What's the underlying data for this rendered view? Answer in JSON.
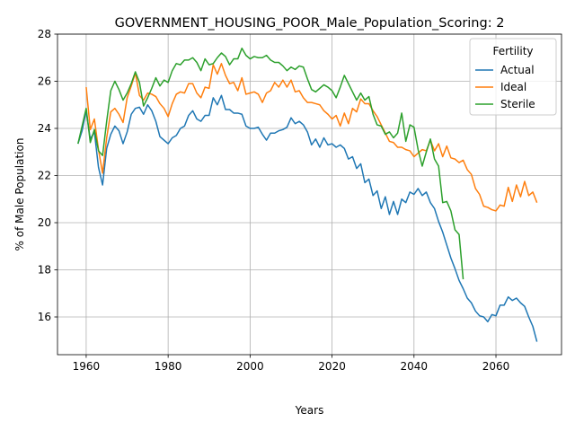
{
  "chart_data": {
    "type": "line",
    "title": "GOVERNMENT_HOUSING_POOR_Male_Population_Scoring: 2",
    "xlabel": "Years",
    "ylabel": "% of Male Population",
    "xlim": [
      1953,
      2076
    ],
    "ylim": [
      14.4,
      28.0
    ],
    "xticks": [
      1960,
      1980,
      2000,
      2020,
      2040,
      2060
    ],
    "yticks": [
      16,
      18,
      20,
      22,
      24,
      26,
      28
    ],
    "grid": true,
    "legend": {
      "title": "Fertility",
      "placement": "upper right"
    },
    "series": [
      {
        "name": "Actual",
        "color": "#1f77b4",
        "x": [
          1958,
          1959,
          1960,
          1961,
          1962,
          1963,
          1964,
          1965,
          1966,
          1967,
          1968,
          1969,
          1970,
          1971,
          1972,
          1973,
          1974,
          1975,
          1976,
          1977,
          1978,
          1979,
          1980,
          1981,
          1982,
          1983,
          1984,
          1985,
          1986,
          1987,
          1988,
          1989,
          1990,
          1991,
          1992,
          1993,
          1994,
          1995,
          1996,
          1997,
          1998,
          1999,
          2000,
          2001,
          2002,
          2003,
          2004,
          2005,
          2006,
          2007,
          2008,
          2009,
          2010,
          2011,
          2012,
          2013,
          2014,
          2015,
          2016,
          2017,
          2018,
          2019,
          2020,
          2021,
          2022,
          2023,
          2024,
          2025,
          2026,
          2027,
          2028,
          2029,
          2030,
          2031,
          2032,
          2033,
          2034,
          2035,
          2036,
          2037,
          2038,
          2039,
          2040,
          2041,
          2042,
          2043,
          2044,
          2045,
          2046,
          2047,
          2048,
          2049,
          2050,
          2051,
          2052,
          2053,
          2054,
          2055,
          2056,
          2057,
          2058,
          2059,
          2060,
          2061,
          2062,
          2063,
          2064,
          2065,
          2066,
          2067,
          2068,
          2069,
          2070
        ],
        "values": [
          23.35,
          23.9,
          24.75,
          23.55,
          23.85,
          22.35,
          21.6,
          23.15,
          23.75,
          24.1,
          23.9,
          23.35,
          23.85,
          24.6,
          24.85,
          24.9,
          24.6,
          25.0,
          24.75,
          24.3,
          23.65,
          23.5,
          23.35,
          23.6,
          23.7,
          24.0,
          24.1,
          24.55,
          24.75,
          24.4,
          24.3,
          24.55,
          24.55,
          25.3,
          25.0,
          25.4,
          24.8,
          24.8,
          24.65,
          24.65,
          24.6,
          24.1,
          24.0,
          24.0,
          24.05,
          23.75,
          23.5,
          23.8,
          23.8,
          23.9,
          23.95,
          24.05,
          24.45,
          24.2,
          24.3,
          24.15,
          23.85,
          23.3,
          23.55,
          23.2,
          23.6,
          23.3,
          23.35,
          23.2,
          23.3,
          23.15,
          22.7,
          22.8,
          22.3,
          22.5,
          21.7,
          21.85,
          21.15,
          21.35,
          20.6,
          21.1,
          20.35,
          20.9,
          20.35,
          21.0,
          20.85,
          21.3,
          21.2,
          21.45,
          21.15,
          21.3,
          20.85,
          20.6,
          20.05,
          19.6,
          19.05,
          18.5,
          18.05,
          17.55,
          17.2,
          16.8,
          16.6,
          16.25,
          16.05,
          16.0,
          15.8,
          16.1,
          16.05,
          16.5,
          16.5,
          16.85,
          16.7,
          16.8,
          16.6,
          16.45,
          16.0,
          15.6,
          14.95
        ]
      },
      {
        "name": "Ideal",
        "color": "#ff7f0e",
        "x": [
          1960,
          1961,
          1962,
          1963,
          1964,
          1965,
          1966,
          1967,
          1968,
          1969,
          1970,
          1971,
          1972,
          1973,
          1974,
          1975,
          1976,
          1977,
          1978,
          1979,
          1980,
          1981,
          1982,
          1983,
          1984,
          1985,
          1986,
          1987,
          1988,
          1989,
          1990,
          1991,
          1992,
          1993,
          1994,
          1995,
          1996,
          1997,
          1998,
          1999,
          2000,
          2001,
          2002,
          2003,
          2004,
          2005,
          2006,
          2007,
          2008,
          2009,
          2010,
          2011,
          2012,
          2013,
          2014,
          2015,
          2016,
          2017,
          2018,
          2019,
          2020,
          2021,
          2022,
          2023,
          2024,
          2025,
          2026,
          2027,
          2028,
          2029,
          2030,
          2031,
          2032,
          2033,
          2034,
          2035,
          2036,
          2037,
          2038,
          2039,
          2040,
          2041,
          2042,
          2043,
          2044,
          2045,
          2046,
          2047,
          2048,
          2049,
          2050,
          2051,
          2052,
          2053,
          2054,
          2055,
          2056,
          2057,
          2058,
          2059,
          2060,
          2061,
          2062,
          2063,
          2064,
          2065,
          2066,
          2067,
          2068,
          2069,
          2070
        ],
        "values": [
          25.75,
          23.95,
          24.4,
          23.1,
          22.1,
          23.6,
          24.7,
          24.85,
          24.6,
          24.25,
          25.3,
          25.8,
          26.35,
          25.4,
          25.2,
          25.5,
          25.45,
          25.35,
          25.05,
          24.85,
          24.5,
          25.05,
          25.45,
          25.55,
          25.5,
          25.9,
          25.9,
          25.5,
          25.3,
          25.75,
          25.7,
          26.7,
          26.3,
          26.75,
          26.25,
          25.9,
          25.95,
          25.6,
          26.15,
          25.45,
          25.5,
          25.55,
          25.45,
          25.1,
          25.5,
          25.6,
          25.95,
          25.75,
          26.05,
          25.75,
          26.05,
          25.55,
          25.6,
          25.3,
          25.1,
          25.1,
          25.05,
          25.0,
          24.75,
          24.6,
          24.4,
          24.55,
          24.1,
          24.65,
          24.2,
          24.85,
          24.7,
          25.25,
          25.05,
          25.05,
          24.75,
          24.5,
          24.15,
          23.8,
          23.45,
          23.4,
          23.2,
          23.2,
          23.1,
          23.05,
          22.8,
          22.95,
          23.1,
          23.05,
          23.5,
          23.05,
          23.35,
          22.8,
          23.25,
          22.75,
          22.7,
          22.55,
          22.65,
          22.25,
          22.05,
          21.45,
          21.2,
          20.7,
          20.65,
          20.55,
          20.5,
          20.75,
          20.7,
          21.5,
          20.9,
          21.6,
          21.1,
          21.75,
          21.15,
          21.3,
          20.85
        ]
      },
      {
        "name": "Sterile",
        "color": "#2ca02c",
        "x": [
          1958,
          1959,
          1960,
          1961,
          1962,
          1963,
          1964,
          1965,
          1966,
          1967,
          1968,
          1969,
          1970,
          1971,
          1972,
          1973,
          1974,
          1975,
          1976,
          1977,
          1978,
          1979,
          1980,
          1981,
          1982,
          1983,
          1984,
          1985,
          1986,
          1987,
          1988,
          1989,
          1990,
          1991,
          1992,
          1993,
          1994,
          1995,
          1996,
          1997,
          1998,
          1999,
          2000,
          2001,
          2002,
          2003,
          2004,
          2005,
          2006,
          2007,
          2008,
          2009,
          2010,
          2011,
          2012,
          2013,
          2014,
          2015,
          2016,
          2017,
          2018,
          2019,
          2020,
          2021,
          2022,
          2023,
          2024,
          2025,
          2026,
          2027,
          2028,
          2029,
          2030,
          2031,
          2032,
          2033,
          2034,
          2035,
          2036,
          2037,
          2038,
          2039,
          2040,
          2041,
          2042,
          2043,
          2044,
          2045,
          2046,
          2047,
          2048,
          2049,
          2050,
          2051,
          2052
        ],
        "values": [
          23.35,
          24.1,
          24.85,
          23.4,
          23.95,
          23.05,
          22.85,
          24.3,
          25.6,
          26.0,
          25.65,
          25.2,
          25.5,
          25.9,
          26.4,
          25.95,
          24.95,
          25.3,
          25.7,
          26.15,
          25.8,
          26.05,
          25.95,
          26.45,
          26.75,
          26.7,
          26.9,
          26.9,
          27.0,
          26.8,
          26.45,
          26.95,
          26.7,
          26.75,
          27.0,
          27.2,
          27.05,
          26.7,
          26.95,
          26.95,
          27.4,
          27.1,
          26.95,
          27.05,
          27.0,
          27.0,
          27.1,
          26.9,
          26.8,
          26.8,
          26.65,
          26.45,
          26.6,
          26.5,
          26.65,
          26.6,
          26.1,
          25.65,
          25.55,
          25.7,
          25.85,
          25.75,
          25.6,
          25.3,
          25.75,
          26.25,
          25.9,
          25.55,
          25.2,
          25.5,
          25.2,
          25.35,
          24.6,
          24.15,
          24.1,
          23.75,
          23.85,
          23.6,
          23.8,
          24.65,
          23.45,
          24.15,
          24.05,
          23.1,
          22.4,
          23.0,
          23.55,
          22.7,
          22.4,
          20.85,
          20.9,
          20.5,
          19.7,
          19.5,
          17.6
        ]
      }
    ]
  }
}
